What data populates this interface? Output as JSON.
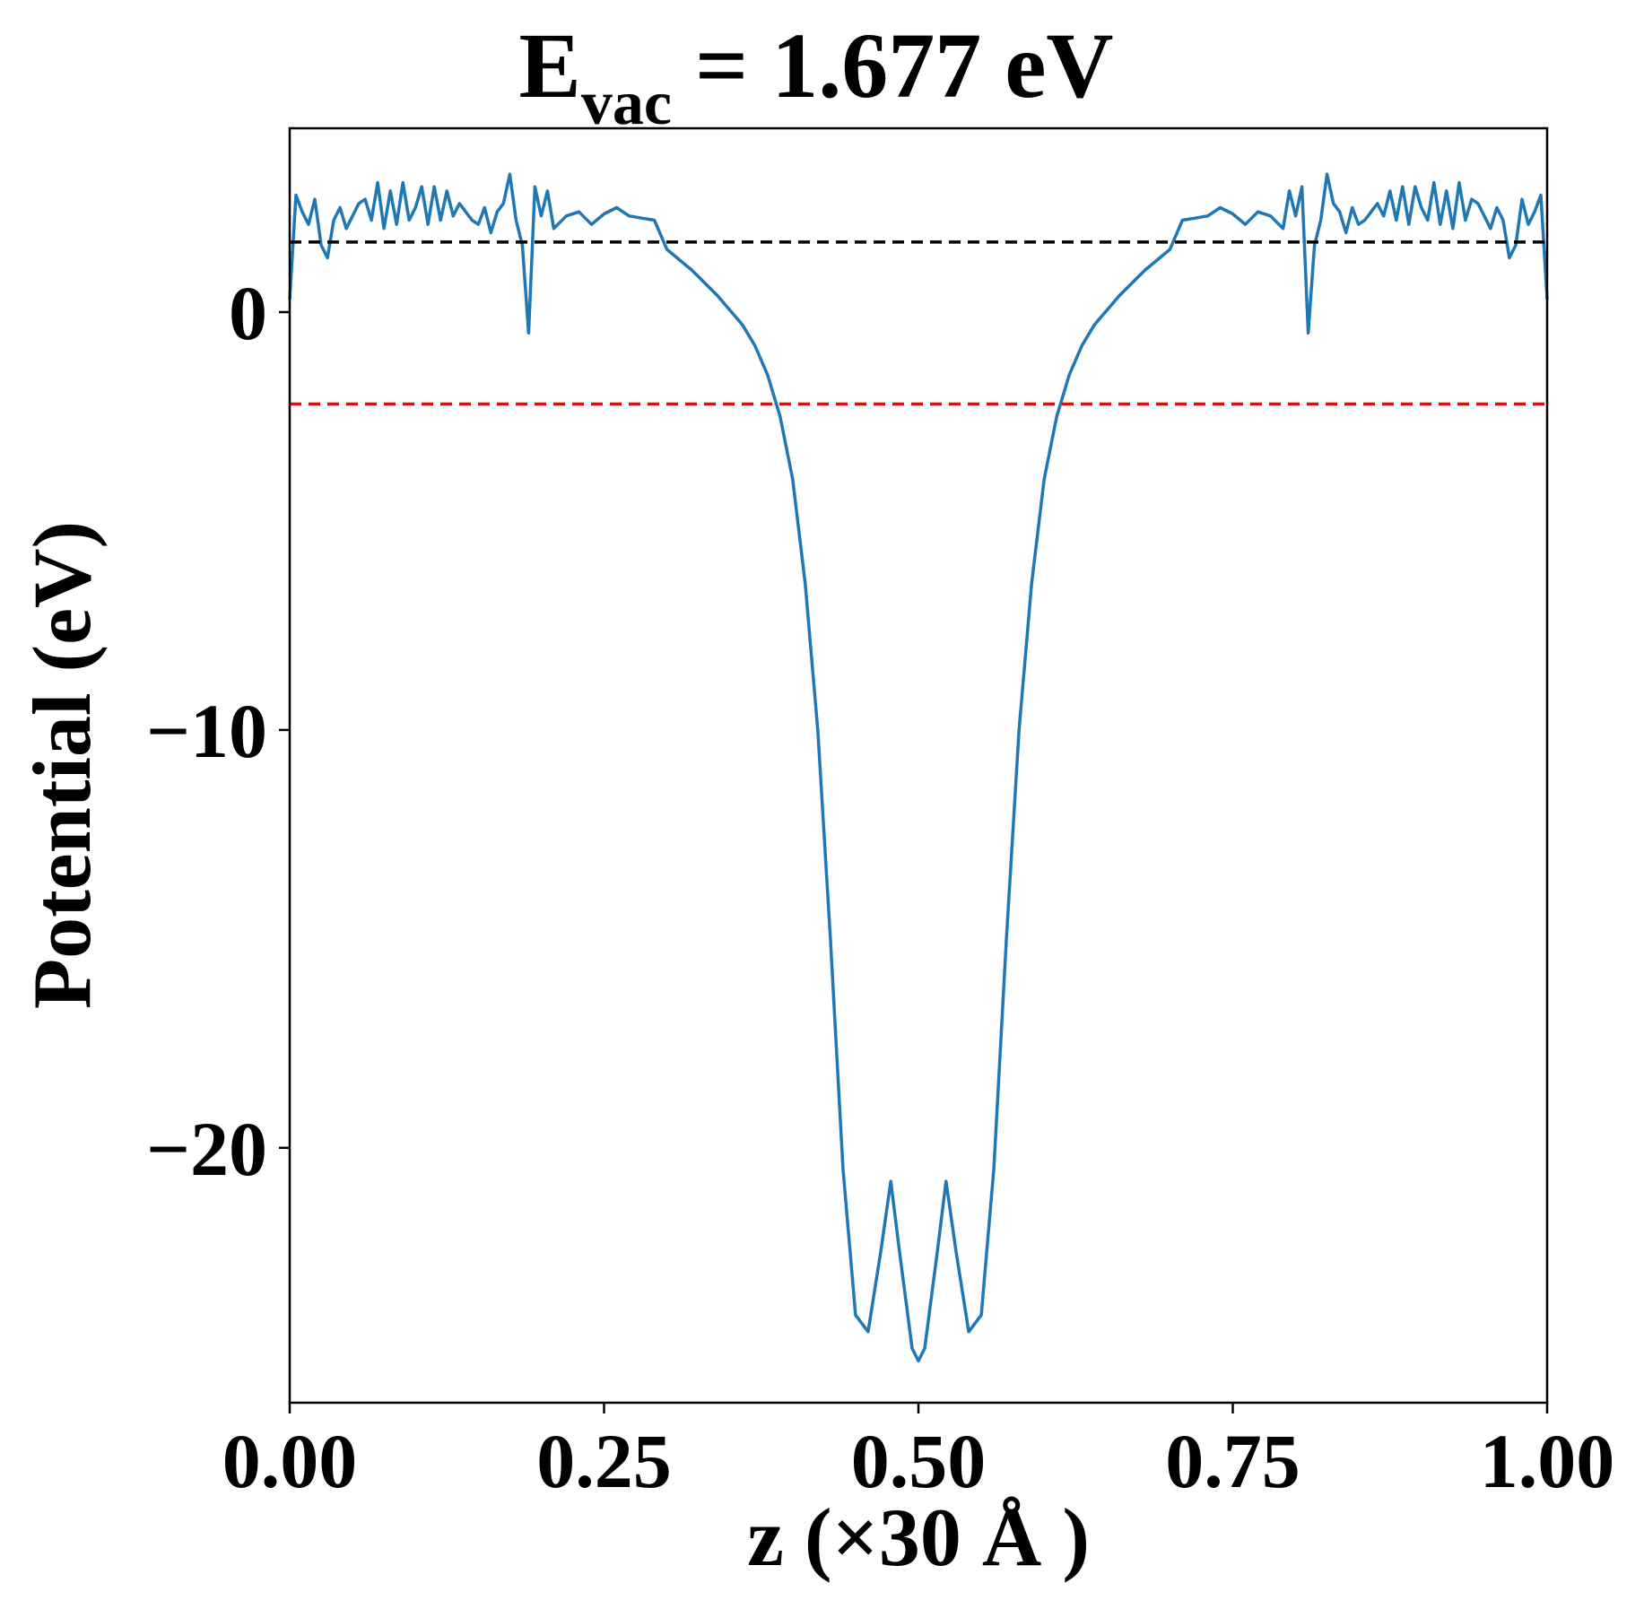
{
  "chart_data": {
    "type": "line",
    "title": {
      "main": "E",
      "subscript": "vac",
      "rest": " = 1.677 eV"
    },
    "xlabel": "z (×30 Å )",
    "ylabel": "Potential (eV)",
    "xlim": [
      0,
      1
    ],
    "ylim": [
      -26.1,
      4.4
    ],
    "grid": false,
    "xticks": [
      0,
      0.25,
      0.5,
      0.75,
      1
    ],
    "xtick_labels": [
      "0.00",
      "0.25",
      "0.50",
      "0.75",
      "1.00"
    ],
    "yticks": [
      0,
      -10,
      -20
    ],
    "ytick_labels": [
      "0",
      "−10",
      "−20"
    ],
    "hlines": [
      {
        "name": "vacuum-level",
        "y": 1.677,
        "color": "#000000",
        "style": "dashed"
      },
      {
        "name": "fermi-level",
        "y": -2.2,
        "color": "#ff0000",
        "style": "dashed"
      }
    ],
    "series": [
      {
        "name": "potential",
        "color": "#1f77b4",
        "x": [
          0,
          0.005,
          0.01,
          0.015,
          0.02,
          0.025,
          0.03,
          0.035,
          0.04,
          0.045,
          0.05,
          0.055,
          0.06,
          0.065,
          0.07,
          0.075,
          0.08,
          0.085,
          0.09,
          0.095,
          0.1,
          0.105,
          0.11,
          0.115,
          0.12,
          0.125,
          0.13,
          0.135,
          0.14,
          0.145,
          0.15,
          0.155,
          0.16,
          0.165,
          0.17,
          0.175,
          0.18,
          0.185,
          0.19,
          0.195,
          0.2,
          0.205,
          0.21,
          0.22,
          0.23,
          0.24,
          0.25,
          0.26,
          0.27,
          0.28,
          0.29,
          0.3,
          0.32,
          0.34,
          0.36,
          0.37,
          0.38,
          0.39,
          0.4,
          0.41,
          0.42,
          0.43,
          0.44,
          0.45,
          0.46,
          0.47,
          0.478,
          0.485,
          0.495,
          0.5
        ],
        "y": [
          0.3,
          2.8,
          2.4,
          2.1,
          2.7,
          1.6,
          1.3,
          2.2,
          2.5,
          2.0,
          2.3,
          2.6,
          2.7,
          2.2,
          3.1,
          2.0,
          2.9,
          2.1,
          3.1,
          2.2,
          2.5,
          3.0,
          2.1,
          3.0,
          2.2,
          2.9,
          2.3,
          2.6,
          2.4,
          2.2,
          2.1,
          2.5,
          1.9,
          2.4,
          2.6,
          3.3,
          2.2,
          1.6,
          -0.5,
          3.0,
          2.3,
          2.9,
          2.0,
          2.3,
          2.4,
          2.1,
          2.35,
          2.5,
          2.3,
          2.25,
          2.2,
          1.5,
          1.0,
          0.4,
          -0.3,
          -0.8,
          -1.5,
          -2.5,
          -4.0,
          -6.5,
          -10.0,
          -15.0,
          -20.5,
          -24.0,
          -24.4,
          -22.5,
          -20.8,
          -22.5,
          -24.8,
          -25.1
        ],
        "symmetric_about": 0.5
      }
    ]
  }
}
